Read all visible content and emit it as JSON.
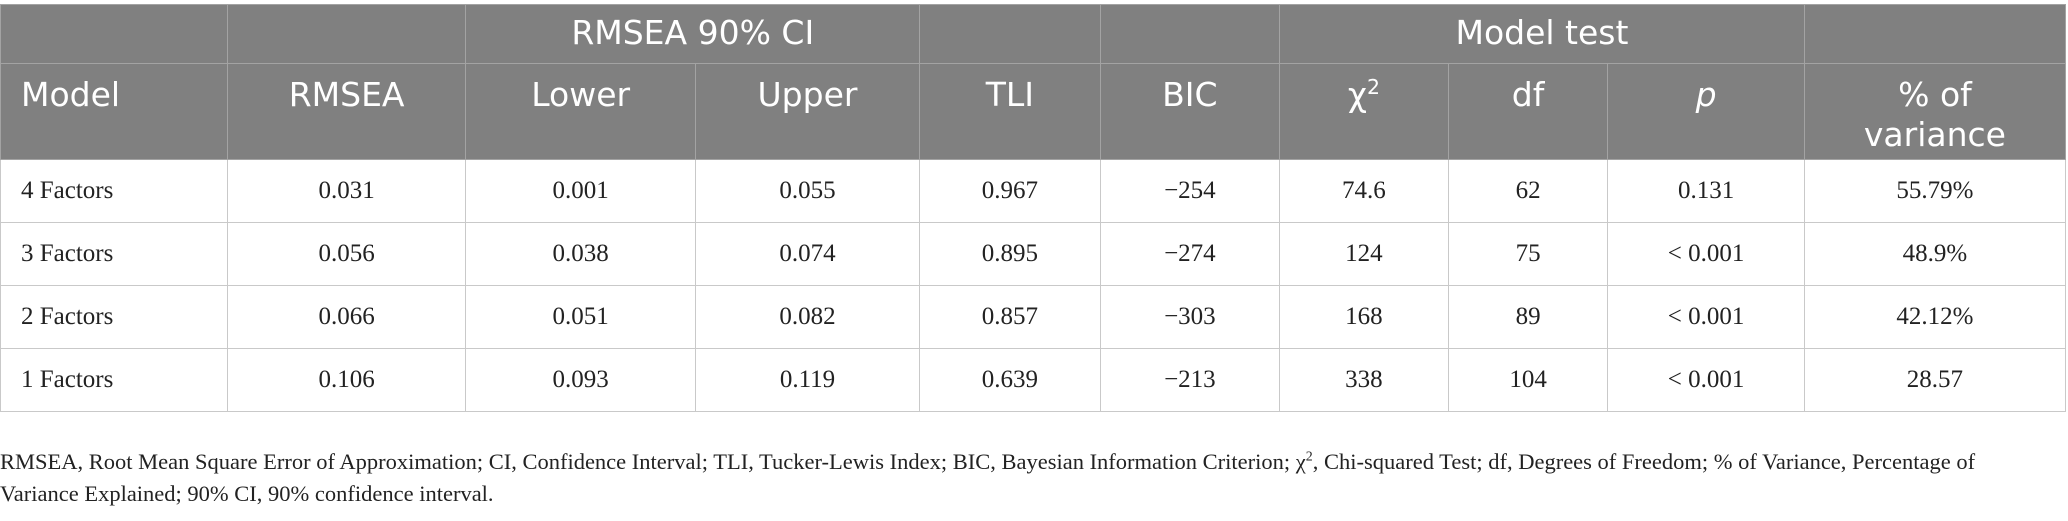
{
  "table": {
    "group_headers": {
      "rmsea_ci": "RMSEA 90% CI",
      "model_test": "Model test"
    },
    "columns": {
      "model": "Model",
      "rmsea": "RMSEA",
      "lower": "Lower",
      "upper": "Upper",
      "tli": "TLI",
      "bic": "BIC",
      "chi_base": "χ",
      "chi_sup": "2",
      "df": "df",
      "p": "p",
      "variance_line1": "% of",
      "variance_line2": "variance"
    },
    "rows": [
      {
        "model": "4 Factors",
        "rmsea": "0.031",
        "lower": "0.001",
        "upper": "0.055",
        "tli": "0.967",
        "bic": "−254",
        "chi2": "74.6",
        "df": "62",
        "p": "0.131",
        "variance": "55.79%"
      },
      {
        "model": "3 Factors",
        "rmsea": "0.056",
        "lower": "0.038",
        "upper": "0.074",
        "tli": "0.895",
        "bic": "−274",
        "chi2": "124",
        "df": "75",
        "p": "< 0.001",
        "variance": "48.9%"
      },
      {
        "model": "2 Factors",
        "rmsea": "0.066",
        "lower": "0.051",
        "upper": "0.082",
        "tli": "0.857",
        "bic": "−303",
        "chi2": "168",
        "df": "89",
        "p": "< 0.001",
        "variance": "42.12%"
      },
      {
        "model": "1 Factors",
        "rmsea": "0.106",
        "lower": "0.093",
        "upper": "0.119",
        "tli": "0.639",
        "bic": "−213",
        "chi2": "338",
        "df": "104",
        "p": "< 0.001",
        "variance": "28.57"
      }
    ]
  },
  "footnote": {
    "part1": "RMSEA, Root Mean Square Error of Approximation; CI, Confidence Interval; TLI, Tucker-Lewis Index; BIC, Bayesian Information Criterion; χ",
    "sup": "2",
    "part2": ", Chi-squared Test; df, Degrees of Freedom; % of Variance, Percentage of Variance Explained; 90% CI, 90% confidence interval."
  },
  "colors": {
    "header_bg": "#808080",
    "header_text": "#ffffff",
    "grid": "#c9c9c9"
  }
}
